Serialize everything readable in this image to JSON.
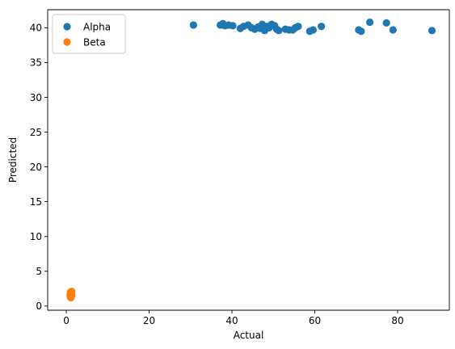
{
  "chart_data": {
    "type": "scatter",
    "title": "",
    "xlabel": "Actual",
    "ylabel": "Predicted",
    "xlim": [
      -4.5,
      92.5
    ],
    "ylim": [
      -0.6,
      42.6
    ],
    "xticks": [
      0,
      20,
      40,
      60,
      80
    ],
    "yticks": [
      0,
      5,
      10,
      15,
      20,
      25,
      30,
      35,
      40
    ],
    "grid": false,
    "legend_position": "top-left",
    "series": [
      {
        "name": "Alpha",
        "color": "#1f77b4",
        "points": [
          [
            30.7,
            40.4
          ],
          [
            37.2,
            40.4
          ],
          [
            37.8,
            40.6
          ],
          [
            38.3,
            40.3
          ],
          [
            39.2,
            40.4
          ],
          [
            40.2,
            40.3
          ],
          [
            42.0,
            39.9
          ],
          [
            42.8,
            40.2
          ],
          [
            43.9,
            40.4
          ],
          [
            44.7,
            40.0
          ],
          [
            45.5,
            39.8
          ],
          [
            46.3,
            40.1
          ],
          [
            46.8,
            39.9
          ],
          [
            47.3,
            40.5
          ],
          [
            47.9,
            39.6
          ],
          [
            48.5,
            40.2
          ],
          [
            49.0,
            40.0
          ],
          [
            49.6,
            40.5
          ],
          [
            50.3,
            40.3
          ],
          [
            50.8,
            39.8
          ],
          [
            51.3,
            39.6
          ],
          [
            52.9,
            39.8
          ],
          [
            53.8,
            39.7
          ],
          [
            54.7,
            39.7
          ],
          [
            55.3,
            40.0
          ],
          [
            56.0,
            40.2
          ],
          [
            58.8,
            39.5
          ],
          [
            59.6,
            39.7
          ],
          [
            61.6,
            40.2
          ],
          [
            70.6,
            39.7
          ],
          [
            71.2,
            39.5
          ],
          [
            73.3,
            40.8
          ],
          [
            77.3,
            40.7
          ],
          [
            78.9,
            39.7
          ],
          [
            88.3,
            39.6
          ]
        ]
      },
      {
        "name": "Beta",
        "color": "#ff7f0e",
        "points": [
          [
            1.0,
            1.4
          ],
          [
            1.1,
            1.7
          ],
          [
            1.2,
            1.9
          ],
          [
            1.0,
            2.0
          ],
          [
            1.3,
            1.5
          ],
          [
            1.1,
            1.2
          ],
          [
            1.2,
            1.8
          ],
          [
            0.9,
            1.6
          ],
          [
            1.3,
            2.1
          ],
          [
            1.0,
            1.3
          ]
        ]
      }
    ]
  }
}
